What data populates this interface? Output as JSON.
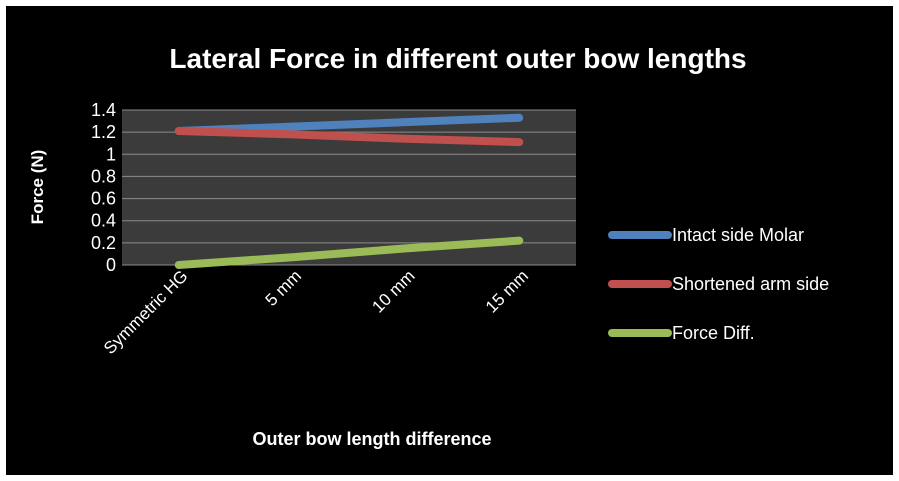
{
  "chart_data": {
    "type": "line",
    "title": "Lateral Force in different outer bow lengths",
    "xlabel": "Outer bow length difference",
    "ylabel": "Force (N)",
    "categories": [
      "Symmetric HG",
      "5 mm",
      "10 mm",
      "15 mm"
    ],
    "ylim": [
      0,
      1.4
    ],
    "yticks": [
      "0",
      "0.2",
      "0.4",
      "0.6",
      "0.8",
      "1",
      "1.2",
      "1.4"
    ],
    "grid": true,
    "legend_position": "right",
    "series": [
      {
        "name": "Intact side Molar",
        "values": [
          1.21,
          1.25,
          1.29,
          1.33
        ],
        "color": "#4f81bd"
      },
      {
        "name": "Shortened arm side",
        "values": [
          1.21,
          1.18,
          1.14,
          1.11
        ],
        "color": "#c0504d"
      },
      {
        "name": "Force Diff.",
        "values": [
          0.0,
          0.07,
          0.15,
          0.22
        ],
        "color": "#9bbb59"
      }
    ],
    "plot_background": "#3b3b3b",
    "background": "#000000",
    "text_color": "#ffffff"
  }
}
